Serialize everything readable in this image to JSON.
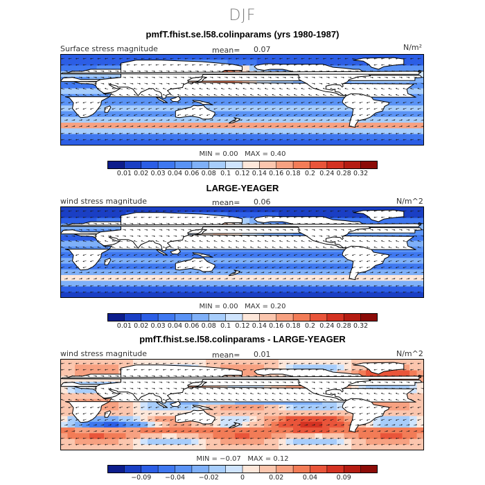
{
  "figure": {
    "title": "DJF"
  },
  "panels": [
    {
      "id": "p1",
      "title": "pmfT.fhist.se.l58.colinparams (yrs 1980-1987)",
      "left_label": "Surface stress magnitude",
      "mean_label": "mean=",
      "mean_value": "0.07",
      "units": "N/m²",
      "min_label": "MIN =",
      "min_value": "0.00",
      "max_label": "MAX =",
      "max_value": "0.40",
      "scale": "positive",
      "colorbar": {
        "colors": [
          "#0d1d8c",
          "#1a3fc4",
          "#2c5ee5",
          "#3f78f0",
          "#5a93f5",
          "#7fb0f8",
          "#a7cdfb",
          "#cfe4fd",
          "#fde7da",
          "#fbc6ae",
          "#f7a181",
          "#f27c57",
          "#e9553a",
          "#d43222",
          "#b51c12",
          "#8c0c08"
        ],
        "tick_labels": [
          "0.01",
          "0.02",
          "0.03",
          "0.04",
          "0.06",
          "0.08",
          "0.1",
          "0.12",
          "0.14",
          "0.16",
          "0.18",
          "0.2",
          "0.24",
          "0.28",
          "0.32"
        ]
      }
    },
    {
      "id": "p2",
      "title": "LARGE-YEAGER",
      "left_label": "wind stress magnitude",
      "mean_label": "mean=",
      "mean_value": "0.06",
      "units": "N/m^2",
      "min_label": "MIN =",
      "min_value": "0.00",
      "max_label": "MAX =",
      "max_value": "0.20",
      "scale": "positive",
      "colorbar": {
        "colors": [
          "#0d1d8c",
          "#1a3fc4",
          "#2c5ee5",
          "#3f78f0",
          "#5a93f5",
          "#7fb0f8",
          "#a7cdfb",
          "#cfe4fd",
          "#fde7da",
          "#fbc6ae",
          "#f7a181",
          "#f27c57",
          "#e9553a",
          "#d43222",
          "#b51c12",
          "#8c0c08"
        ],
        "tick_labels": [
          "0.01",
          "0.02",
          "0.03",
          "0.04",
          "0.06",
          "0.08",
          "0.1",
          "0.12",
          "0.14",
          "0.16",
          "0.18",
          "0.2",
          "0.24",
          "0.28",
          "0.32"
        ]
      }
    },
    {
      "id": "p3",
      "title": "pmfT.fhist.se.l58.colinparams - LARGE-YEAGER",
      "left_label": "wind stress magnitude",
      "mean_label": "mean=",
      "mean_value": "0.01",
      "units": "N/m^2",
      "min_label": "MIN =",
      "min_value": "−0.07",
      "max_label": "MAX =",
      "max_value": "0.12",
      "scale": "diff",
      "colorbar": {
        "colors": [
          "#0d1d8c",
          "#1a3fc4",
          "#2c5ee5",
          "#3f78f0",
          "#5a93f5",
          "#7fb0f8",
          "#a7cdfb",
          "#cfe4fd",
          "#fde7da",
          "#fbc6ae",
          "#f7a181",
          "#f27c57",
          "#e9553a",
          "#d43222",
          "#b51c12",
          "#8c0c08"
        ],
        "tick_labels": [
          "−0.09",
          "−0.04",
          "−0.02",
          "0",
          "0.02",
          "0.04",
          "0.09"
        ]
      }
    }
  ]
}
